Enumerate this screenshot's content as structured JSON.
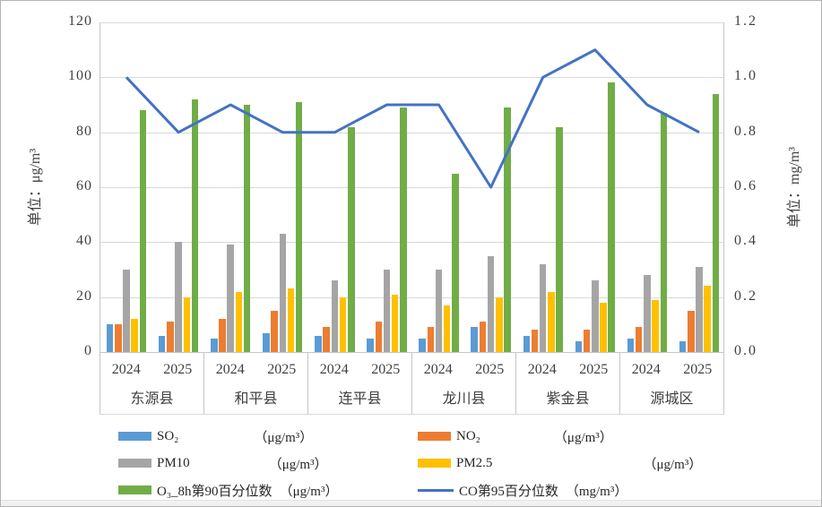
{
  "chart_data": {
    "type": "bar+line",
    "left_axis": {
      "title": "单位：μg/m³",
      "ticks": [
        "0",
        "20",
        "40",
        "60",
        "80",
        "100",
        "120"
      ],
      "min": 0,
      "max": 120,
      "grid": true
    },
    "right_axis": {
      "title": "单位：mg/m³",
      "ticks": [
        "0.0",
        "0.2",
        "0.4",
        "0.6",
        "0.8",
        "1.0",
        "1.2"
      ],
      "min": 0,
      "max": 1.2
    },
    "categories": [
      {
        "county": "东源县",
        "years": [
          "2024",
          "2025"
        ]
      },
      {
        "county": "和平县",
        "years": [
          "2024",
          "2025"
        ]
      },
      {
        "county": "连平县",
        "years": [
          "2024",
          "2025"
        ]
      },
      {
        "county": "龙川县",
        "years": [
          "2024",
          "2025"
        ]
      },
      {
        "county": "紫金县",
        "years": [
          "2024",
          "2025"
        ]
      },
      {
        "county": "源城区",
        "years": [
          "2024",
          "2025"
        ]
      }
    ],
    "series": [
      {
        "key": "so2",
        "name": "SO₂",
        "unit": "（μg/m³）",
        "type": "bar",
        "color": "#5B9BD5",
        "values": [
          10,
          6,
          5,
          7,
          6,
          5,
          5,
          9,
          6,
          4,
          5,
          4
        ]
      },
      {
        "key": "no2",
        "name": "NO₂",
        "unit": "（μg/m³）",
        "type": "bar",
        "color": "#ED7D31",
        "values": [
          10,
          11,
          12,
          15,
          9,
          11,
          9,
          11,
          8,
          8,
          9,
          15
        ]
      },
      {
        "key": "pm10",
        "name": "PM10",
        "unit": "（μg/m³）",
        "type": "bar",
        "color": "#A5A5A5",
        "values": [
          30,
          40,
          39,
          43,
          26,
          30,
          30,
          35,
          32,
          26,
          28,
          31
        ]
      },
      {
        "key": "pm2-5",
        "name": "PM2.5",
        "unit": "（μg/m³）",
        "type": "bar",
        "color": "#FFC000",
        "values": [
          12,
          20,
          22,
          23,
          20,
          21,
          17,
          20,
          22,
          18,
          19,
          24
        ]
      },
      {
        "key": "o3-8h",
        "name": "O₃_8h第90百分位数",
        "unit": "（μg/m³）",
        "type": "bar",
        "color": "#70AD47",
        "values": [
          88,
          92,
          90,
          91,
          82,
          89,
          65,
          89,
          82,
          98,
          87,
          94
        ]
      },
      {
        "key": "co",
        "name": "CO第95百分位数",
        "unit": "（mg/m³）",
        "type": "line",
        "color": "#4472C4",
        "values": [
          1.0,
          0.8,
          0.9,
          0.8,
          0.8,
          0.9,
          0.9,
          0.6,
          1.0,
          1.1,
          0.9,
          0.8
        ]
      }
    ],
    "legend_column_order": [
      "so2",
      "pm10",
      "o3-8h",
      "no2",
      "pm2-5",
      "co"
    ],
    "colors": {
      "gridline": "#D9D9D9",
      "axis_line": "#C6C6C6",
      "text": "#3F3F3F",
      "background": "#FFFFFF"
    }
  }
}
